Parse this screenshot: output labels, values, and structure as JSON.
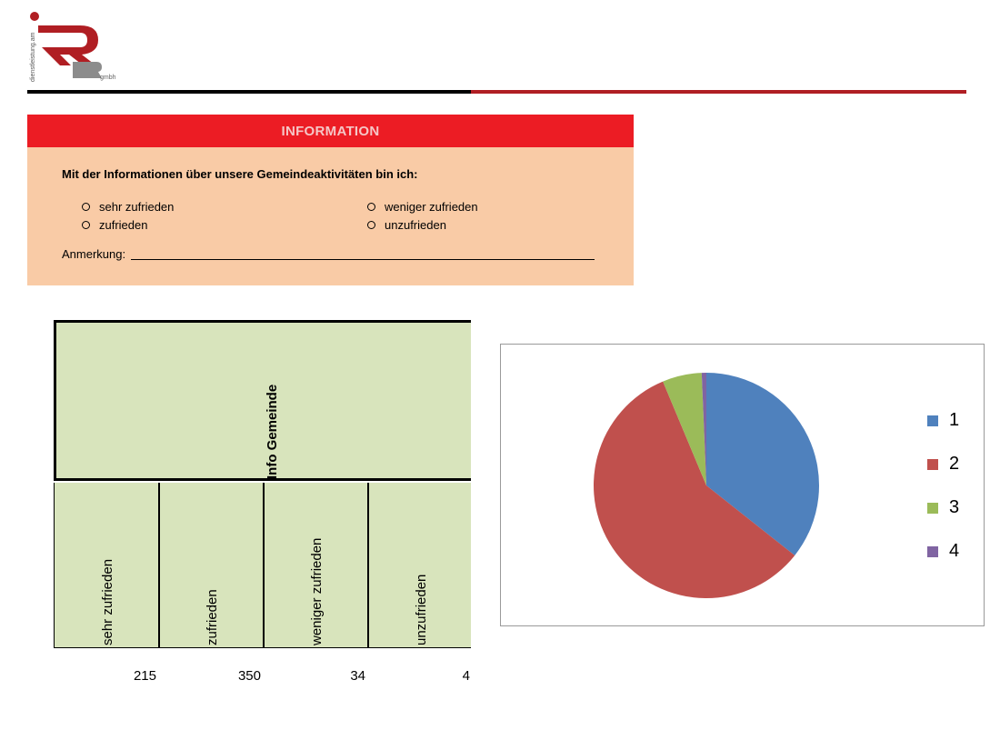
{
  "logo": {
    "vertical_text": "dienstleistung.am",
    "suffix": "gmbh"
  },
  "info": {
    "title": "INFORMATION",
    "question": "Mit der Informationen über unsere Gemeindeaktivitäten bin ich:",
    "options": [
      "sehr zufrieden",
      "zufrieden",
      "weniger zufrieden",
      "unzufrieden"
    ],
    "remark_label": "Anmerkung:"
  },
  "table": {
    "header": "Info Gemeinde",
    "columns": [
      "sehr zufrieden",
      "zufrieden",
      "weniger zufrieden",
      "unzufrieden"
    ],
    "values": [
      "215",
      "350",
      "34",
      "4"
    ]
  },
  "chart_data": {
    "type": "pie",
    "categories": [
      "1",
      "2",
      "3",
      "4"
    ],
    "values": [
      215,
      350,
      34,
      4
    ],
    "colors": [
      "#4f81bd",
      "#c0504d",
      "#9bbb59",
      "#8064a2"
    ],
    "legend_position": "right"
  }
}
